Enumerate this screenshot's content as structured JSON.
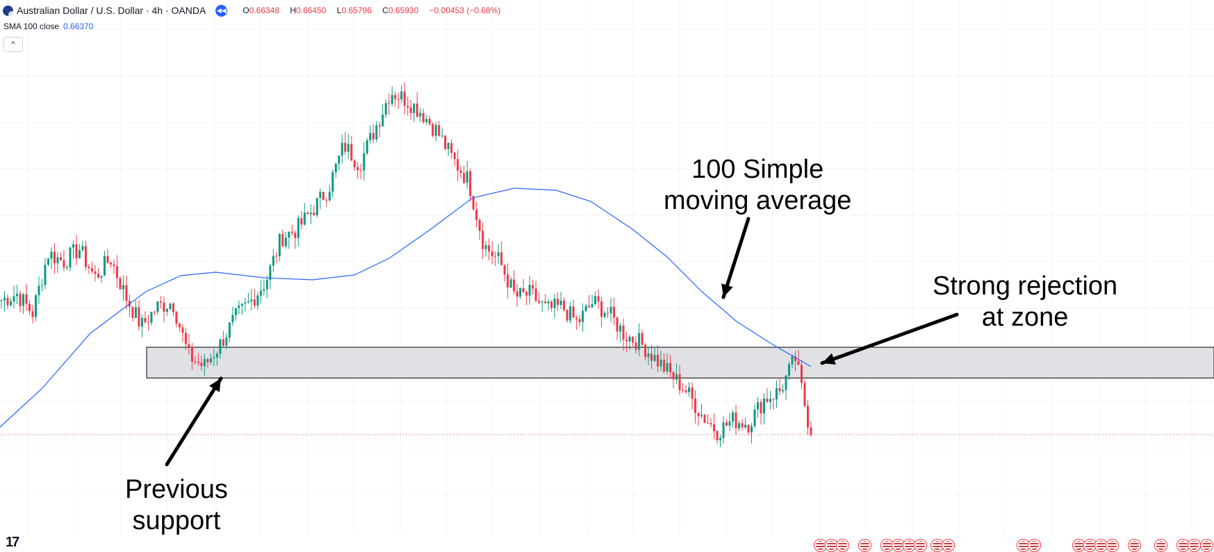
{
  "header": {
    "title": "Australian Dollar / U.S. Dollar · 4h · OANDA",
    "ohlc": {
      "o_label": "O",
      "o": "0.66348",
      "h_label": "H",
      "h": "0.66450",
      "l_label": "L",
      "l": "0.65796",
      "c_label": "C",
      "c": "0.65930",
      "change": "−0.00453 (−0.68%)"
    }
  },
  "indicator": {
    "label": "SMA 100 close",
    "value": "0.66370"
  },
  "collapse_symbol": "^",
  "annotations": {
    "sma_note_line1": "100 Simple",
    "sma_note_line2": "moving average",
    "rejection_line1": "Strong rejection",
    "rejection_line2": "at zone",
    "support_line1": "Previous",
    "support_line2": "support"
  },
  "logo_text": "17",
  "colors": {
    "up": "#089981",
    "down": "#f23645",
    "sma": "#2962ff",
    "zone": "#e0e1e5"
  },
  "chart_data": {
    "type": "candlestick",
    "symbol": "AUDUSD",
    "interval": "4h",
    "current_close": 0.6593,
    "sma_last": 0.6637,
    "support_zone": [
      0.6628,
      0.6647
    ],
    "price_path": [
      0.6676,
      0.668,
      0.6668,
      0.6705,
      0.67,
      0.6708,
      0.669,
      0.6702,
      0.6678,
      0.666,
      0.6672,
      0.6675,
      0.6642,
      0.6635,
      0.6648,
      0.6665,
      0.6675,
      0.6688,
      0.6715,
      0.672,
      0.6732,
      0.6745,
      0.6772,
      0.676,
      0.6782,
      0.6805,
      0.68,
      0.6792,
      0.678,
      0.6763,
      0.675,
      0.671,
      0.67,
      0.6678,
      0.668,
      0.667,
      0.6672,
      0.6662,
      0.6675,
      0.6668,
      0.6655,
      0.665,
      0.664,
      0.663,
      0.662,
      0.6605,
      0.6595,
      0.6602,
      0.66,
      0.6615,
      0.662,
      0.664,
      0.6593
    ]
  }
}
